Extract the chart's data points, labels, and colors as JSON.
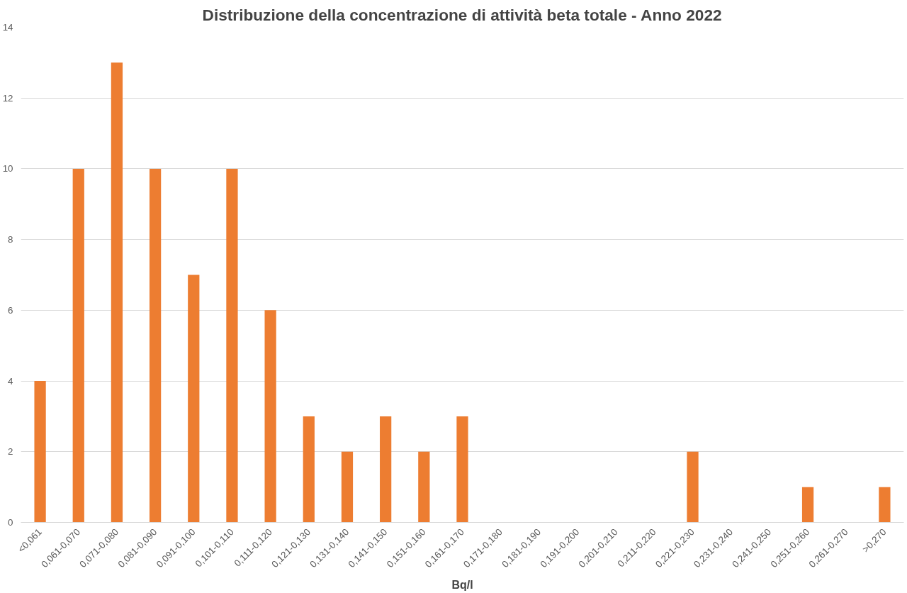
{
  "chart_data": {
    "type": "bar",
    "title": "Distribuzione della concentrazione di attività beta totale - Anno 2022",
    "xlabel": "Bq/l",
    "categories": [
      "<0,061",
      "0,061-0,070",
      "0,071-0,080",
      "0,081-0,090",
      "0,091-0,100",
      "0,101-0,110",
      "0,111-0,120",
      "0,121-0,130",
      "0,131-0,140",
      "0,141-0,150",
      "0,151-0,160",
      "0,161-0,170",
      "0,171-0,180",
      "0,181-0,190",
      "0,191-0,200",
      "0,201-0,210",
      "0,211-0,220",
      "0,221-0,230",
      "0,231-0,240",
      "0,241-0,250",
      "0,251-0,260",
      "0,261-0,270",
      ">0,270"
    ],
    "values": [
      4,
      10,
      13,
      10,
      7,
      10,
      6,
      3,
      2,
      3,
      2,
      3,
      0,
      0,
      0,
      0,
      0,
      2,
      0,
      0,
      1,
      0,
      1
    ],
    "color": "#ed7d31",
    "ylim": [
      0,
      14
    ],
    "yticks": [
      0,
      2,
      4,
      6,
      8,
      10,
      12,
      14
    ],
    "grid": "y"
  }
}
